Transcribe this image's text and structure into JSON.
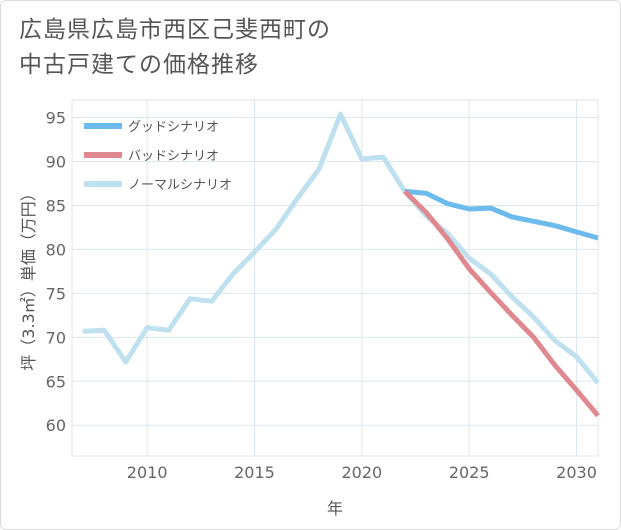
{
  "title_lines": [
    "広島県広島市西区己斐西町の",
    "中古戸建ての価格推移"
  ],
  "chart_data": {
    "type": "line",
    "xlabel": "年",
    "ylabel": "坪（3.3㎡）単価（万円）",
    "xlim": [
      2006.5,
      2031
    ],
    "ylim": [
      56.5,
      97
    ],
    "xticks": [
      2010,
      2015,
      2020,
      2025,
      2030
    ],
    "yticks": [
      60,
      65,
      70,
      75,
      80,
      85,
      90,
      95
    ],
    "legend_position": "top-left",
    "grid": true,
    "series": [
      {
        "name": "グッドシナリオ",
        "color": "#6cbbef",
        "x": [
          2022,
          2023,
          2024,
          2025,
          2026,
          2027,
          2028,
          2029,
          2030,
          2031
        ],
        "values": [
          86.6,
          86.4,
          85.2,
          84.6,
          84.7,
          83.7,
          83.2,
          82.7,
          82.0,
          81.3
        ]
      },
      {
        "name": "バッドシナリオ",
        "color": "#e0888f",
        "x": [
          2022,
          2023,
          2024,
          2025,
          2026,
          2027,
          2028,
          2029,
          2030,
          2031
        ],
        "values": [
          86.6,
          84.2,
          81.2,
          77.8,
          75.1,
          72.5,
          70.0,
          66.8,
          64.0,
          61.1
        ]
      },
      {
        "name": "ノーマルシナリオ",
        "color": "#bfe0ee",
        "x": [
          2007,
          2008,
          2009,
          2010,
          2011,
          2012,
          2013,
          2014,
          2015,
          2016,
          2017,
          2018,
          2019,
          2020,
          2021,
          2022,
          2023,
          2024,
          2025,
          2026,
          2027,
          2028,
          2029,
          2030,
          2031
        ],
        "values": [
          70.7,
          70.8,
          67.2,
          71.1,
          70.8,
          74.4,
          74.1,
          77.2,
          79.7,
          82.3,
          85.8,
          89.1,
          95.4,
          90.3,
          90.5,
          86.6,
          83.8,
          81.8,
          79.0,
          77.2,
          74.6,
          72.3,
          69.6,
          67.8,
          64.8
        ]
      }
    ]
  }
}
